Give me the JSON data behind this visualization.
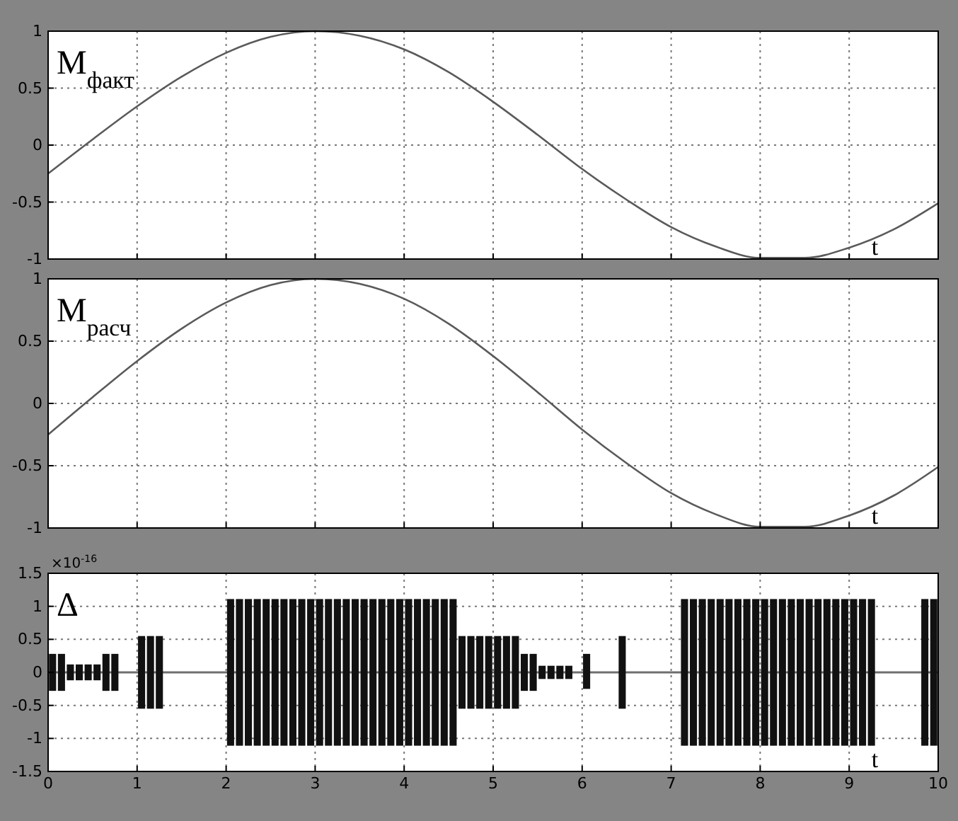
{
  "chart_data": [
    {
      "type": "line",
      "title": "M$_{факт}$",
      "xlabel": "t",
      "xlim": [
        0,
        10
      ],
      "xticks": [
        0,
        1,
        2,
        3,
        4,
        5,
        6,
        7,
        8,
        9,
        10
      ],
      "ylim": [
        -1,
        1
      ],
      "yticks": [
        -1,
        -0.5,
        0,
        0.5,
        1
      ],
      "grid": true,
      "tick_labels": "y",
      "color": "#5a5a5a",
      "x": [
        0,
        0.5,
        1,
        1.5,
        2,
        2.5,
        3,
        3.5,
        4,
        4.5,
        5,
        5.5,
        6,
        6.5,
        7,
        7.5,
        8,
        8.5,
        9,
        9.5,
        10
      ],
      "values": [
        -0.25,
        0.05,
        0.34,
        0.6,
        0.81,
        0.95,
        1,
        0.96,
        0.84,
        0.64,
        0.38,
        0.09,
        -0.21,
        -0.48,
        -0.72,
        -0.89,
        -0.99,
        -0.99,
        -0.9,
        -0.74,
        -0.51
      ]
    },
    {
      "type": "line",
      "title": "M$_{расч}$",
      "xlabel": "t",
      "xlim": [
        0,
        10
      ],
      "xticks": [
        0,
        1,
        2,
        3,
        4,
        5,
        6,
        7,
        8,
        9,
        10
      ],
      "ylim": [
        -1,
        1
      ],
      "yticks": [
        -1,
        -0.5,
        0,
        0.5,
        1
      ],
      "grid": true,
      "tick_labels": "y",
      "color": "#5a5a5a",
      "x": [
        0,
        0.5,
        1,
        1.5,
        2,
        2.5,
        3,
        3.5,
        4,
        4.5,
        5,
        5.5,
        6,
        6.5,
        7,
        7.5,
        8,
        8.5,
        9,
        9.5,
        10
      ],
      "values": [
        -0.25,
        0.05,
        0.34,
        0.6,
        0.81,
        0.95,
        1,
        0.96,
        0.84,
        0.64,
        0.38,
        0.09,
        -0.21,
        -0.48,
        -0.72,
        -0.89,
        -0.99,
        -0.99,
        -0.9,
        -0.74,
        -0.51
      ]
    },
    {
      "type": "bar",
      "title": "Δ",
      "xlabel": "t",
      "annotations": [
        "×10$^{-16}$"
      ],
      "xlim": [
        0,
        10
      ],
      "xticks": [
        0,
        1,
        2,
        3,
        4,
        5,
        6,
        7,
        8,
        9,
        10
      ],
      "ylim": [
        -1.5,
        1.5
      ],
      "yticks": [
        -1.5,
        -1,
        -0.5,
        0,
        0.5,
        1,
        1.5
      ],
      "grid": true,
      "color": "#111111",
      "ref_lines": [
        {
          "axis": "y",
          "value": 0,
          "color": "#6e6e6e"
        }
      ],
      "x": [
        0.05,
        0.15,
        0.25,
        0.35,
        0.45,
        0.55,
        0.65,
        0.75,
        0.85,
        0.95,
        1.05,
        1.15,
        1.25,
        1.35,
        1.45,
        1.55,
        1.65,
        1.75,
        1.85,
        1.95,
        2.05,
        2.15,
        2.25,
        2.35,
        2.45,
        2.55,
        2.65,
        2.75,
        2.85,
        2.95,
        3.05,
        3.15,
        3.25,
        3.35,
        3.45,
        3.55,
        3.65,
        3.75,
        3.85,
        3.95,
        4.05,
        4.15,
        4.25,
        4.35,
        4.45,
        4.55,
        4.65,
        4.75,
        4.85,
        4.95,
        5.05,
        5.15,
        5.25,
        5.35,
        5.45,
        5.55,
        5.65,
        5.75,
        5.85,
        5.95,
        6.05,
        6.15,
        6.25,
        6.35,
        6.45,
        6.55,
        6.65,
        6.75,
        6.85,
        6.95,
        7.05,
        7.15,
        7.25,
        7.35,
        7.45,
        7.55,
        7.65,
        7.75,
        7.85,
        7.95,
        8.05,
        8.15,
        8.25,
        8.35,
        8.45,
        8.55,
        8.65,
        8.75,
        8.85,
        8.95,
        9.05,
        9.15,
        9.25,
        9.35,
        9.45,
        9.55,
        9.65,
        9.75,
        9.85,
        9.95
      ],
      "values": [
        0.56,
        0.56,
        0.24,
        0.24,
        0.24,
        0.24,
        0.56,
        0.56,
        null,
        null,
        1.1,
        1.1,
        1.1,
        null,
        null,
        null,
        null,
        null,
        null,
        null,
        2.22,
        2.22,
        2.22,
        2.22,
        2.22,
        2.22,
        2.22,
        2.22,
        2.22,
        2.22,
        2.22,
        2.22,
        2.22,
        2.22,
        2.22,
        2.22,
        2.22,
        2.22,
        2.22,
        2.22,
        2.22,
        2.22,
        2.22,
        2.22,
        2.22,
        2.22,
        1.1,
        1.1,
        1.1,
        1.1,
        1.1,
        1.1,
        1.1,
        0.56,
        0.56,
        0.2,
        0.2,
        0.2,
        0.2,
        null,
        0.53,
        null,
        null,
        null,
        1.1,
        null,
        null,
        null,
        null,
        null,
        null,
        2.22,
        2.22,
        2.22,
        2.22,
        2.22,
        2.22,
        2.22,
        2.22,
        2.22,
        2.22,
        2.22,
        2.22,
        2.22,
        2.22,
        2.22,
        2.22,
        2.22,
        2.22,
        2.22,
        2.22,
        2.22,
        2.22,
        null,
        null,
        null,
        null,
        null,
        2.22,
        2.22
      ],
      "base": [
        -0.28,
        -0.28,
        -0.12,
        -0.12,
        -0.12,
        -0.12,
        -0.28,
        -0.28,
        null,
        null,
        -0.55,
        -0.55,
        -0.55,
        null,
        null,
        null,
        null,
        null,
        null,
        null,
        -1.11,
        -1.11,
        -1.11,
        -1.11,
        -1.11,
        -1.11,
        -1.11,
        -1.11,
        -1.11,
        -1.11,
        -1.11,
        -1.11,
        -1.11,
        -1.11,
        -1.11,
        -1.11,
        -1.11,
        -1.11,
        -1.11,
        -1.11,
        -1.11,
        -1.11,
        -1.11,
        -1.11,
        -1.11,
        -1.11,
        -0.55,
        -0.55,
        -0.55,
        -0.55,
        -0.55,
        -0.55,
        -0.55,
        -0.28,
        -0.28,
        -0.1,
        -0.1,
        -0.1,
        -0.1,
        null,
        -0.25,
        null,
        null,
        null,
        -0.55,
        null,
        null,
        null,
        null,
        null,
        null,
        -1.11,
        -1.11,
        -1.11,
        -1.11,
        -1.11,
        -1.11,
        -1.11,
        -1.11,
        -1.11,
        -1.11,
        -1.11,
        -1.11,
        -1.11,
        -1.11,
        -1.11,
        -1.11,
        -1.11,
        -1.11,
        -1.11,
        -1.11,
        -1.11,
        -1.11,
        null,
        null,
        null,
        null,
        null,
        -1.11,
        -1.11
      ]
    }
  ]
}
